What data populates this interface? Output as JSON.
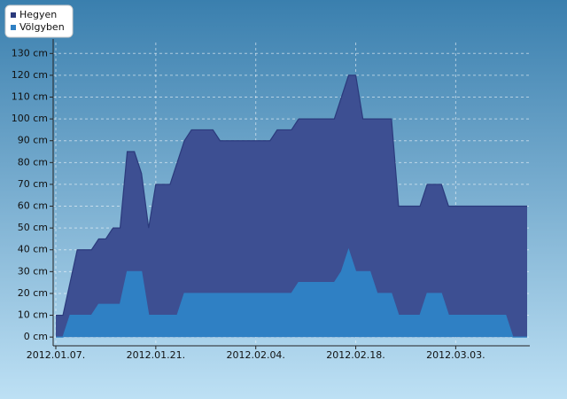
{
  "chart_data": {
    "type": "area",
    "x": [
      "2012.01.07.",
      "2012.01.08.",
      "2012.01.09.",
      "2012.01.10.",
      "2012.01.11.",
      "2012.01.12.",
      "2012.01.13.",
      "2012.01.14.",
      "2012.01.15.",
      "2012.01.16.",
      "2012.01.17.",
      "2012.01.18.",
      "2012.01.19.",
      "2012.01.20.",
      "2012.01.21.",
      "2012.01.22.",
      "2012.01.23.",
      "2012.01.24.",
      "2012.01.25.",
      "2012.01.26.",
      "2012.01.27.",
      "2012.01.28.",
      "2012.01.29.",
      "2012.01.30.",
      "2012.01.31.",
      "2012.02.01.",
      "2012.02.02.",
      "2012.02.03.",
      "2012.02.04.",
      "2012.02.05.",
      "2012.02.06.",
      "2012.02.07.",
      "2012.02.08.",
      "2012.02.09.",
      "2012.02.10.",
      "2012.02.11.",
      "2012.02.12.",
      "2012.02.13.",
      "2012.02.14.",
      "2012.02.15.",
      "2012.02.16.",
      "2012.02.17.",
      "2012.02.18.",
      "2012.02.19.",
      "2012.02.20.",
      "2012.02.21.",
      "2012.02.22.",
      "2012.02.23.",
      "2012.02.24.",
      "2012.02.25.",
      "2012.02.26.",
      "2012.02.27.",
      "2012.02.28.",
      "2012.02.29.",
      "2012.03.01.",
      "2012.03.02.",
      "2012.03.03.",
      "2012.03.04.",
      "2012.03.05.",
      "2012.03.06.",
      "2012.03.07.",
      "2012.03.08.",
      "2012.03.09.",
      "2012.03.10.",
      "2012.03.11.",
      "2012.03.12.",
      "2012.03.13."
    ],
    "xticks": [
      "2012.01.07.",
      "2012.01.21.",
      "2012.02.04.",
      "2012.02.18.",
      "2012.03.03."
    ],
    "series": [
      {
        "name": "Hegyen",
        "color": "#2b3a7c",
        "fill": "#3d4f92",
        "values": [
          10,
          10,
          25,
          40,
          40,
          40,
          45,
          45,
          50,
          50,
          85,
          85,
          75,
          50,
          70,
          70,
          70,
          80,
          90,
          95,
          95,
          95,
          95,
          90,
          90,
          90,
          90,
          90,
          90,
          90,
          90,
          95,
          95,
          95,
          100,
          100,
          100,
          100,
          100,
          100,
          110,
          120,
          120,
          100,
          100,
          100,
          100,
          100,
          60,
          60,
          60,
          60,
          70,
          70,
          70,
          60,
          60,
          60,
          60,
          60,
          60,
          60,
          60,
          60,
          60,
          60,
          60
        ]
      },
      {
        "name": "Völgyben",
        "color": "#2f80c4",
        "fill": "#2f80c4",
        "values": [
          0,
          0,
          10,
          10,
          10,
          10,
          15,
          15,
          15,
          15,
          30,
          30,
          30,
          10,
          10,
          10,
          10,
          10,
          20,
          20,
          20,
          20,
          20,
          20,
          20,
          20,
          20,
          20,
          20,
          20,
          20,
          20,
          20,
          20,
          25,
          25,
          25,
          25,
          25,
          25,
          30,
          40,
          30,
          30,
          30,
          20,
          20,
          20,
          10,
          10,
          10,
          10,
          20,
          20,
          20,
          10,
          10,
          10,
          10,
          10,
          10,
          10,
          10,
          10,
          0,
          0,
          0
        ]
      }
    ],
    "ylim": [
      -4,
      135
    ],
    "yticks": [
      {
        "value": 0,
        "label": "0 cm"
      },
      {
        "value": 10,
        "label": "10 cm"
      },
      {
        "value": 20,
        "label": "20 cm"
      },
      {
        "value": 30,
        "label": "30 cm"
      },
      {
        "value": 40,
        "label": "40 cm"
      },
      {
        "value": 50,
        "label": "50 cm"
      },
      {
        "value": 60,
        "label": "60 cm"
      },
      {
        "value": 70,
        "label": "70 cm"
      },
      {
        "value": 80,
        "label": "80 cm"
      },
      {
        "value": 90,
        "label": "90 cm"
      },
      {
        "value": 100,
        "label": "100 cm"
      },
      {
        "value": 110,
        "label": "110 cm"
      },
      {
        "value": 120,
        "label": "120 cm"
      },
      {
        "value": 130,
        "label": "130 cm"
      }
    ],
    "grid": true,
    "legend": "top-left"
  }
}
